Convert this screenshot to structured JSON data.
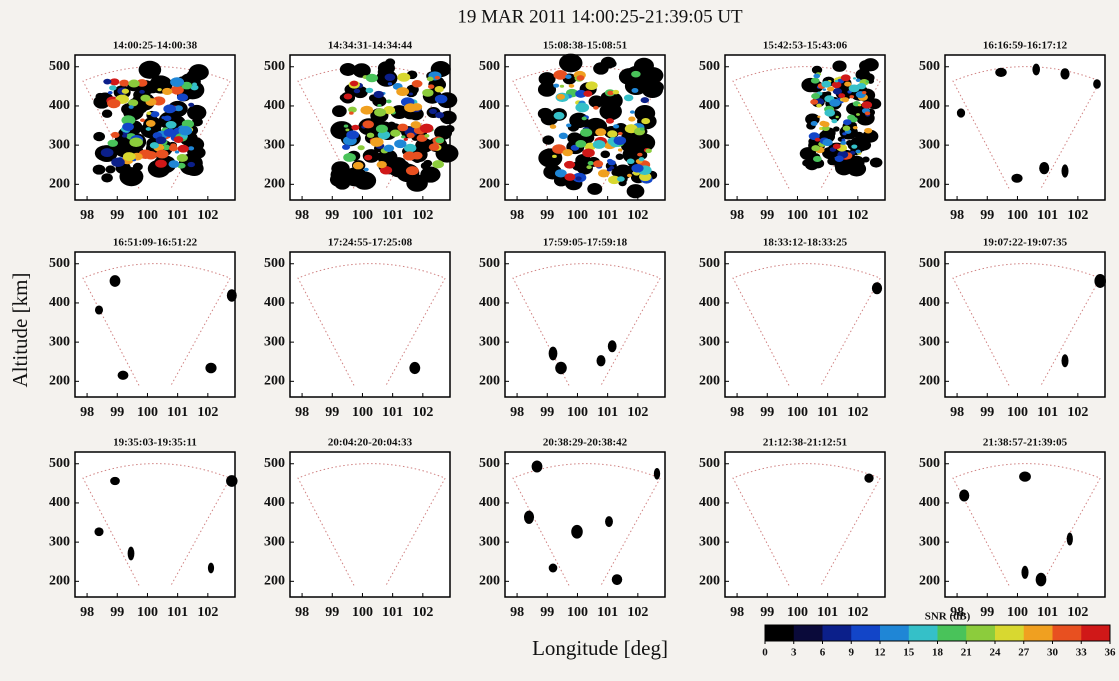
{
  "figure": {
    "title": "19 MAR 2011    14:00:25-21:39:05 UT",
    "xlabel": "Longitude [deg]",
    "ylabel": "Altitude [km]"
  },
  "colorbar": {
    "label": "SNR (dB)",
    "lim": [
      0,
      36
    ],
    "ticks": [
      0,
      3,
      6,
      9,
      12,
      15,
      18,
      21,
      24,
      27,
      30,
      33,
      36
    ],
    "colors": [
      "#000000",
      "#0a0a3a",
      "#0b1f8a",
      "#1245c8",
      "#1f86d6",
      "#35c0c8",
      "#49c35a",
      "#8ccc3c",
      "#d8d830",
      "#f0a020",
      "#e85020",
      "#d01818"
    ]
  },
  "chart_data": [
    {
      "type": "fan",
      "title": "14:00:25-14:00:38",
      "xlim": [
        97.6,
        102.9
      ],
      "ylim": [
        160,
        530
      ],
      "xticks": [
        98,
        99,
        100,
        101,
        102
      ],
      "yticks": [
        200,
        300,
        400,
        500
      ]
    },
    {
      "type": "fan",
      "title": "14:34:31-14:34:44",
      "xlim": [
        97.6,
        102.9
      ],
      "ylim": [
        160,
        530
      ],
      "xticks": [
        98,
        99,
        100,
        101,
        102
      ],
      "yticks": [
        200,
        300,
        400,
        500
      ]
    },
    {
      "type": "fan",
      "title": "15:08:38-15:08:51",
      "xlim": [
        97.6,
        102.9
      ],
      "ylim": [
        160,
        530
      ],
      "xticks": [
        98,
        99,
        100,
        101,
        102
      ],
      "yticks": [
        200,
        300,
        400,
        500
      ]
    },
    {
      "type": "fan",
      "title": "15:42:53-15:43:06",
      "xlim": [
        97.6,
        102.9
      ],
      "ylim": [
        160,
        530
      ],
      "xticks": [
        98,
        99,
        100,
        101,
        102
      ],
      "yticks": [
        200,
        300,
        400,
        500
      ]
    },
    {
      "type": "fan",
      "title": "16:16:59-16:17:12",
      "xlim": [
        97.6,
        102.9
      ],
      "ylim": [
        160,
        530
      ],
      "xticks": [
        98,
        99,
        100,
        101,
        102
      ],
      "yticks": [
        200,
        300,
        400,
        500
      ]
    },
    {
      "type": "fan",
      "title": "16:51:09-16:51:22",
      "xlim": [
        97.6,
        102.9
      ],
      "ylim": [
        160,
        530
      ],
      "xticks": [
        98,
        99,
        100,
        101,
        102
      ],
      "yticks": [
        200,
        300,
        400,
        500
      ]
    },
    {
      "type": "fan",
      "title": "17:24:55-17:25:08",
      "xlim": [
        97.6,
        102.9
      ],
      "ylim": [
        160,
        530
      ],
      "xticks": [
        98,
        99,
        100,
        101,
        102
      ],
      "yticks": [
        200,
        300,
        400,
        500
      ]
    },
    {
      "type": "fan",
      "title": "17:59:05-17:59:18",
      "xlim": [
        97.6,
        102.9
      ],
      "ylim": [
        160,
        530
      ],
      "xticks": [
        98,
        99,
        100,
        101,
        102
      ],
      "yticks": [
        200,
        300,
        400,
        500
      ]
    },
    {
      "type": "fan",
      "title": "18:33:12-18:33:25",
      "xlim": [
        97.6,
        102.9
      ],
      "ylim": [
        160,
        530
      ],
      "xticks": [
        98,
        99,
        100,
        101,
        102
      ],
      "yticks": [
        200,
        300,
        400,
        500
      ]
    },
    {
      "type": "fan",
      "title": "19:07:22-19:07:35",
      "xlim": [
        97.6,
        102.9
      ],
      "ylim": [
        160,
        530
      ],
      "xticks": [
        98,
        99,
        100,
        101,
        102
      ],
      "yticks": [
        200,
        300,
        400,
        500
      ]
    },
    {
      "type": "fan",
      "title": "19:35:03-19:35:11",
      "xlim": [
        97.6,
        102.9
      ],
      "ylim": [
        160,
        530
      ],
      "xticks": [
        98,
        99,
        100,
        101,
        102
      ],
      "yticks": [
        200,
        300,
        400,
        500
      ]
    },
    {
      "type": "fan",
      "title": "20:04:20-20:04:33",
      "xlim": [
        97.6,
        102.9
      ],
      "ylim": [
        160,
        530
      ],
      "xticks": [
        98,
        99,
        100,
        101,
        102
      ],
      "yticks": [
        200,
        300,
        400,
        500
      ]
    },
    {
      "type": "fan",
      "title": "20:38:29-20:38:42",
      "xlim": [
        97.6,
        102.9
      ],
      "ylim": [
        160,
        530
      ],
      "xticks": [
        98,
        99,
        100,
        101,
        102
      ],
      "yticks": [
        200,
        300,
        400,
        500
      ]
    },
    {
      "type": "fan",
      "title": "21:12:38-21:12:51",
      "xlim": [
        97.6,
        102.9
      ],
      "ylim": [
        160,
        530
      ],
      "xticks": [
        98,
        99,
        100,
        101,
        102
      ],
      "yticks": [
        200,
        300,
        400,
        500
      ]
    },
    {
      "type": "fan",
      "title": "21:38:57-21:39:05",
      "xlim": [
        97.6,
        102.9
      ],
      "ylim": [
        160,
        530
      ],
      "xticks": [
        98,
        99,
        100,
        101,
        102
      ],
      "yticks": [
        200,
        300,
        400,
        500
      ]
    }
  ]
}
